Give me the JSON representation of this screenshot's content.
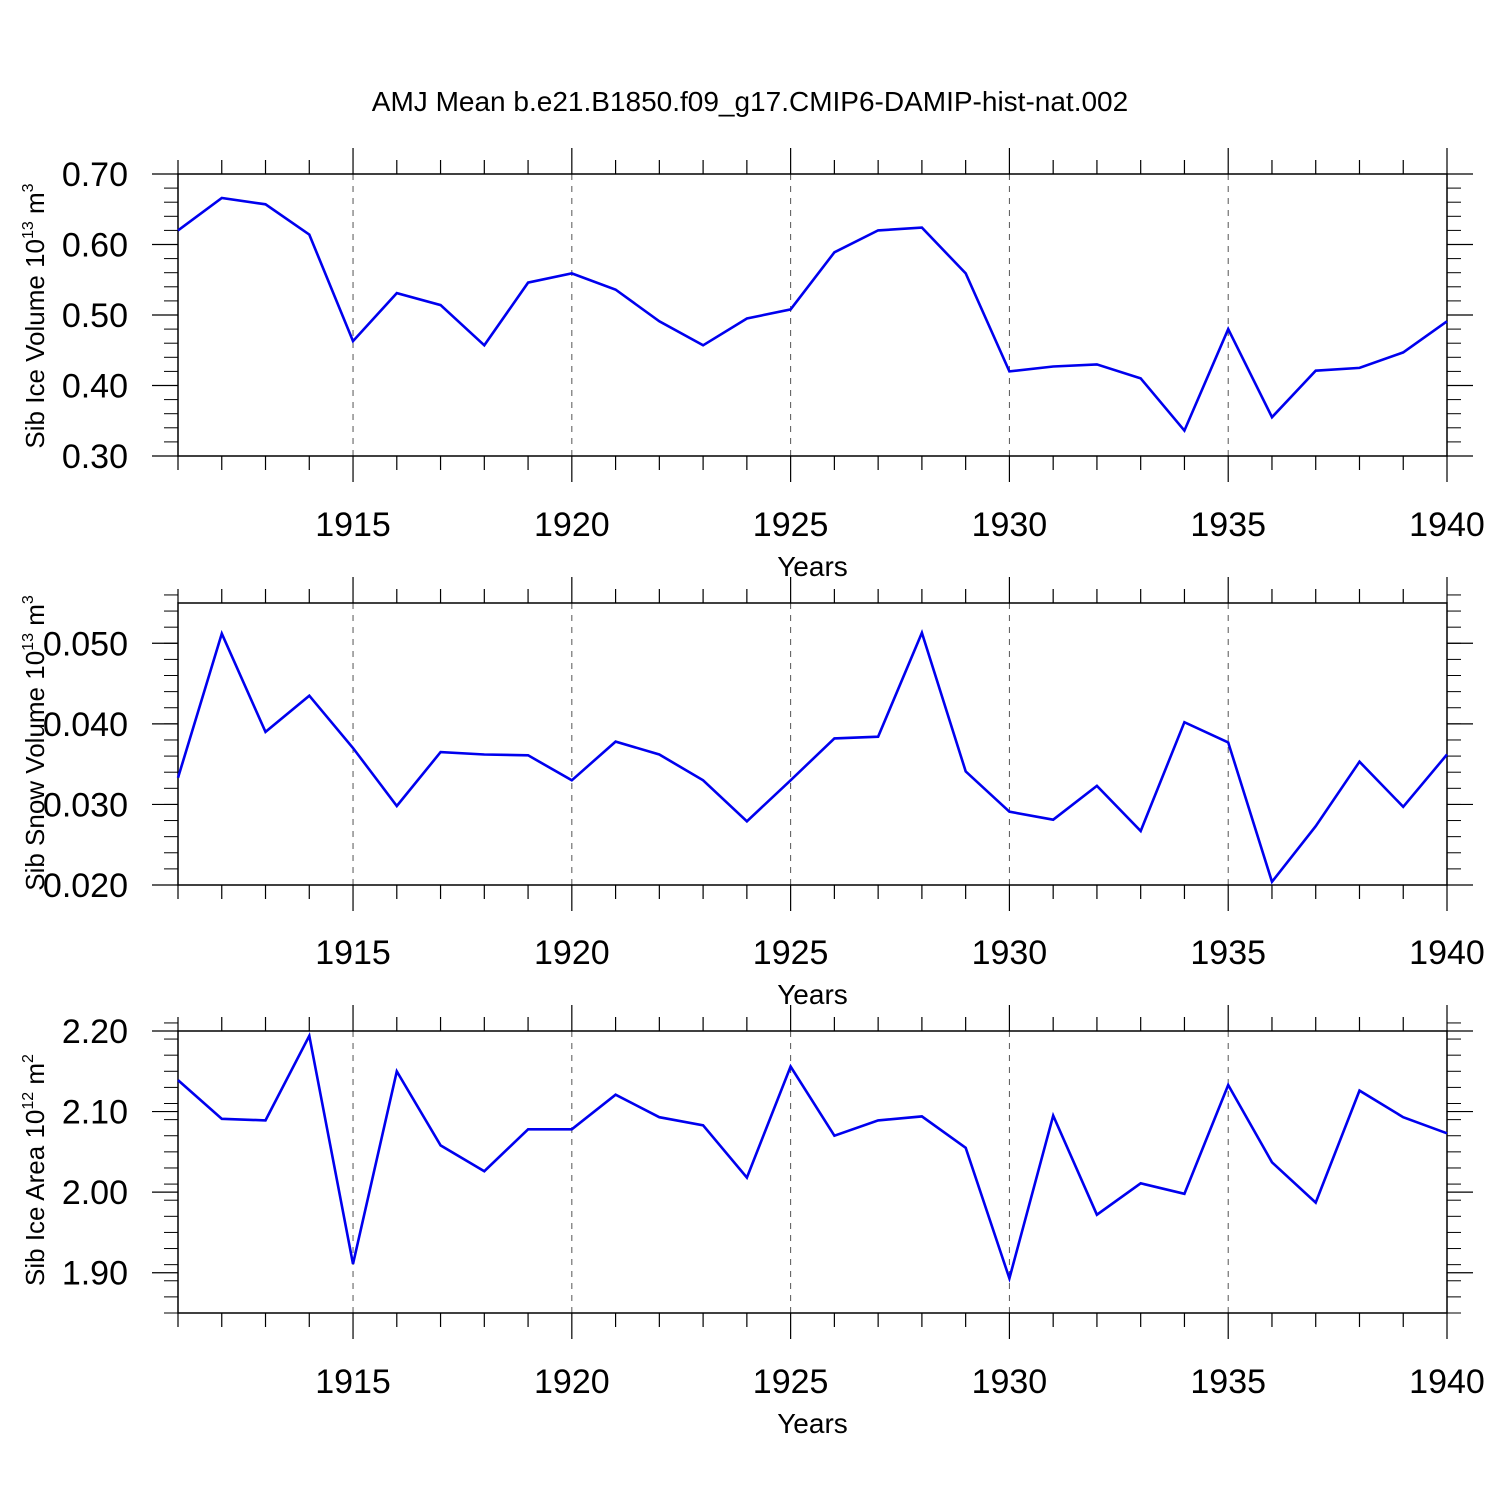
{
  "title": "AMJ Mean b.e21.B1850.f09_g17.CMIP6-DAMIP-hist-nat.002",
  "colors": {
    "line": "#0000ee",
    "axis": "#000000",
    "grid": "#555555"
  },
  "chart_data": [
    {
      "type": "line",
      "name": "sib-ice-volume",
      "xlabel": "Years",
      "ylabel_main": "Sib Ice Volume 10",
      "ylabel_sup": "13",
      "ylabel_unit": " m",
      "ylabel_unit_sup": "3",
      "xlim": [
        1911,
        1940
      ],
      "ylim": [
        0.3,
        0.7
      ],
      "x_major_ticks": [
        1915,
        1920,
        1925,
        1930,
        1935,
        1940
      ],
      "x_tick_labels": [
        "1915",
        "1920",
        "1925",
        "1930",
        "1935",
        "1940"
      ],
      "y_major_ticks": [
        0.3,
        0.4,
        0.5,
        0.6,
        0.7
      ],
      "y_tick_labels": [
        "0.30",
        "0.40",
        "0.50",
        "0.60",
        "0.70"
      ],
      "y_minor_step": 0.02,
      "x": [
        1911,
        1912,
        1913,
        1914,
        1915,
        1916,
        1917,
        1918,
        1919,
        1920,
        1921,
        1922,
        1923,
        1924,
        1925,
        1926,
        1927,
        1928,
        1929,
        1930,
        1931,
        1932,
        1933,
        1934,
        1935,
        1936,
        1937,
        1938,
        1939,
        1940
      ],
      "values": [
        0.62,
        0.666,
        0.657,
        0.614,
        0.463,
        0.531,
        0.514,
        0.457,
        0.546,
        0.559,
        0.536,
        0.491,
        0.457,
        0.495,
        0.508,
        0.589,
        0.62,
        0.624,
        0.559,
        0.42,
        0.427,
        0.43,
        0.41,
        0.336,
        0.48,
        0.355,
        0.421,
        0.425,
        0.447,
        0.491
      ]
    },
    {
      "type": "line",
      "name": "sib-snow-volume",
      "xlabel": "Years",
      "ylabel_main": "Sib Snow Volume 10",
      "ylabel_sup": "13",
      "ylabel_unit": " m",
      "ylabel_unit_sup": "3",
      "xlim": [
        1911,
        1940
      ],
      "ylim": [
        0.02,
        0.055
      ],
      "x_major_ticks": [
        1915,
        1920,
        1925,
        1930,
        1935,
        1940
      ],
      "x_tick_labels": [
        "1915",
        "1920",
        "1925",
        "1930",
        "1935",
        "1940"
      ],
      "y_major_ticks": [
        0.02,
        0.03,
        0.04,
        0.05
      ],
      "y_tick_labels": [
        "0.020",
        "0.030",
        "0.040",
        "0.050"
      ],
      "y_minor_step": 0.002,
      "x": [
        1911,
        1912,
        1913,
        1914,
        1915,
        1916,
        1917,
        1918,
        1919,
        1920,
        1921,
        1922,
        1923,
        1924,
        1925,
        1926,
        1927,
        1928,
        1929,
        1930,
        1931,
        1932,
        1933,
        1934,
        1935,
        1936,
        1937,
        1938,
        1939,
        1940
      ],
      "values": [
        0.0333,
        0.0512,
        0.039,
        0.0435,
        0.037,
        0.0298,
        0.0365,
        0.0362,
        0.0361,
        0.033,
        0.0378,
        0.0362,
        0.033,
        0.0279,
        0.033,
        0.0382,
        0.0384,
        0.0513,
        0.0341,
        0.0291,
        0.0281,
        0.0323,
        0.0267,
        0.0402,
        0.0377,
        0.0204,
        0.0273,
        0.0353,
        0.0297,
        0.0362
      ]
    },
    {
      "type": "line",
      "name": "sib-ice-area",
      "xlabel": "Years",
      "ylabel_main": "Sib Ice Area 10",
      "ylabel_sup": "12",
      "ylabel_unit": " m",
      "ylabel_unit_sup": "2",
      "xlim": [
        1911,
        1940
      ],
      "ylim": [
        1.85,
        2.2
      ],
      "x_major_ticks": [
        1915,
        1920,
        1925,
        1930,
        1935,
        1940
      ],
      "x_tick_labels": [
        "1915",
        "1920",
        "1925",
        "1930",
        "1935",
        "1940"
      ],
      "y_major_ticks": [
        1.9,
        2.0,
        2.1,
        2.2
      ],
      "y_tick_labels": [
        "1.90",
        "2.00",
        "2.10",
        "2.20"
      ],
      "y_minor_step": 0.02,
      "x": [
        1911,
        1912,
        1913,
        1914,
        1915,
        1916,
        1917,
        1918,
        1919,
        1920,
        1921,
        1922,
        1923,
        1924,
        1925,
        1926,
        1927,
        1928,
        1929,
        1930,
        1931,
        1932,
        1933,
        1934,
        1935,
        1936,
        1937,
        1938,
        1939,
        1940
      ],
      "values": [
        2.139,
        2.091,
        2.089,
        2.194,
        1.911,
        2.15,
        2.058,
        2.026,
        2.078,
        2.078,
        2.121,
        2.093,
        2.083,
        2.018,
        2.156,
        2.07,
        2.089,
        2.094,
        2.055,
        1.893,
        2.095,
        1.972,
        2.011,
        1.998,
        2.133,
        2.037,
        1.987,
        2.126,
        2.093,
        2.073
      ]
    }
  ]
}
